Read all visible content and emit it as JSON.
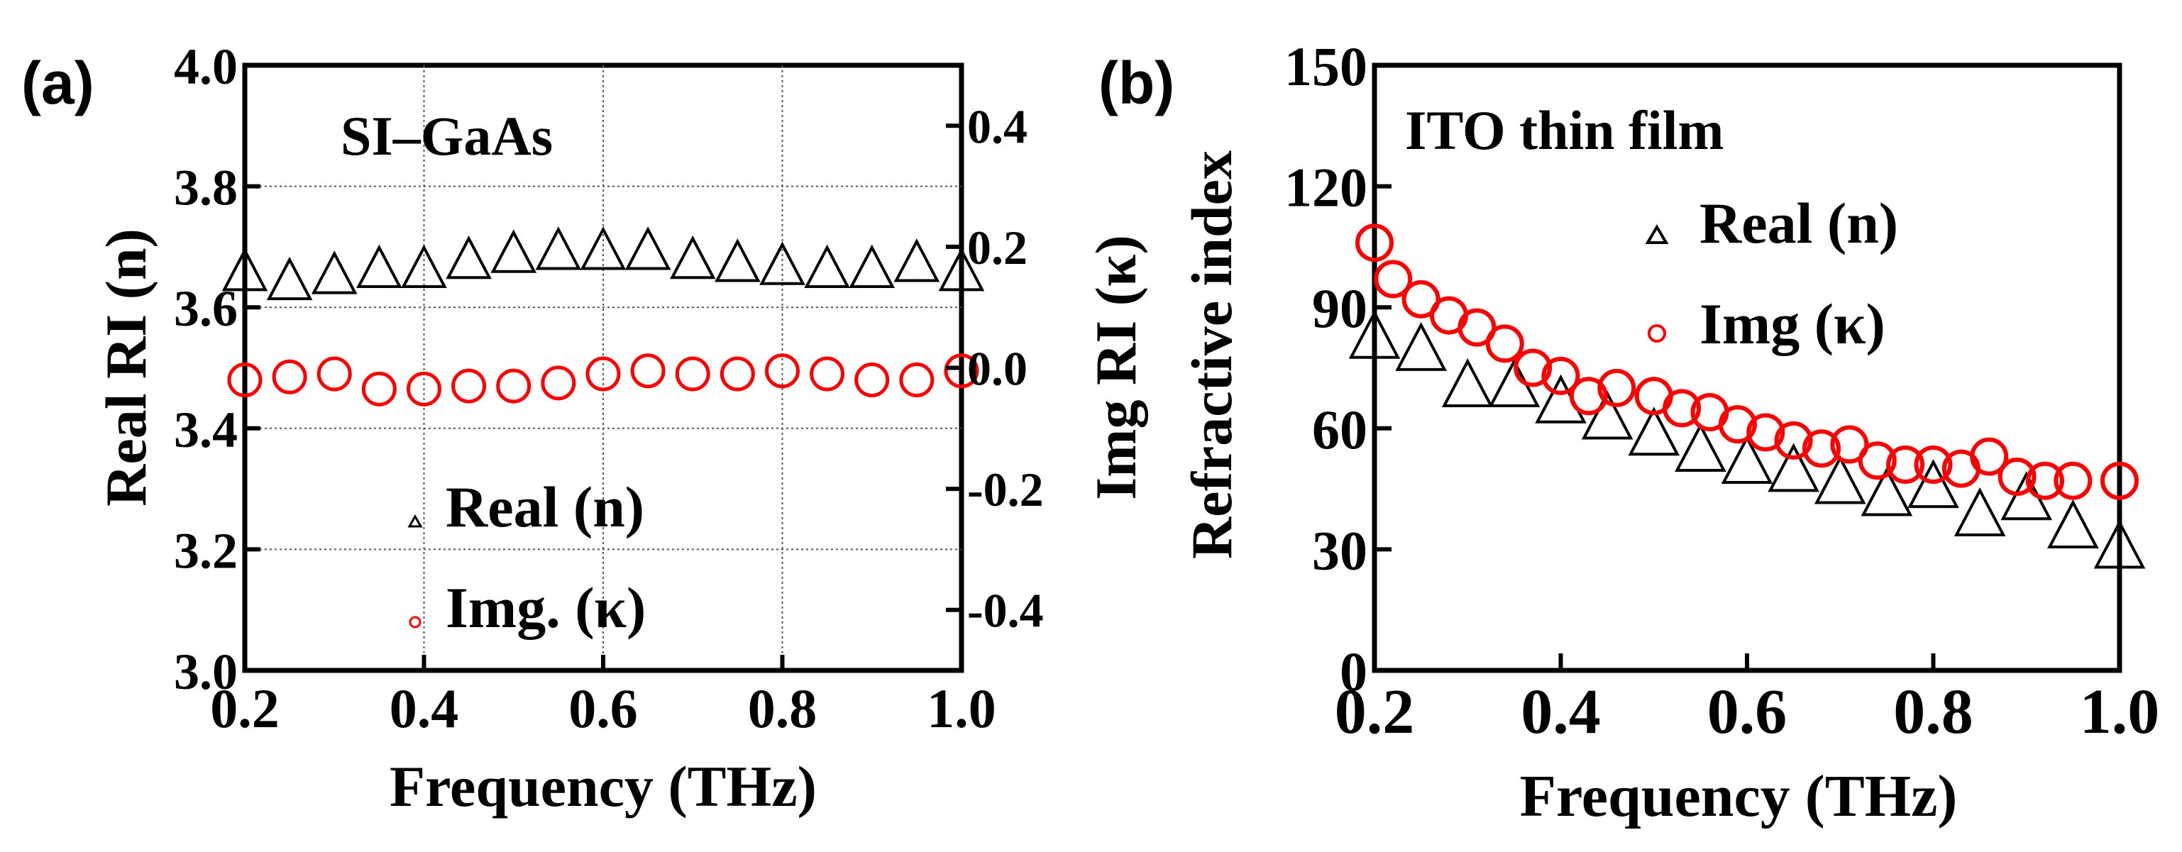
{
  "colors": {
    "real_series": "#000000",
    "img_series": "#ff0000",
    "axis": "#000000",
    "grid": "#555555",
    "background": "#ffffff"
  },
  "chart_data": [
    {
      "panel_label": "(a)",
      "type": "scatter",
      "title": "SI–GaAs",
      "xlabel": "Frequency (THz)",
      "ylabel": "Real  RI (n)",
      "y2label": "Img  RI (κ)",
      "xlim": [
        0.2,
        1.0
      ],
      "ylim": [
        3.0,
        4.0
      ],
      "y2lim": [
        -0.5,
        0.5
      ],
      "grid": true,
      "xticks": [
        "0.2",
        "0.4",
        "0.6",
        "0.8",
        "1.0"
      ],
      "yticks": [
        "3.0",
        "3.2",
        "3.4",
        "3.6",
        "3.8",
        "4.0"
      ],
      "y2ticks": [
        "-0.4",
        "-0.2",
        "0.0",
        "0.2",
        "0.4"
      ],
      "legend": [
        {
          "label": "Real (n)",
          "marker": "triangle",
          "color": "#000000"
        },
        {
          "label": "Img. (κ)",
          "marker": "circle",
          "color": "#ff0000"
        }
      ],
      "series": [
        {
          "name": "Real (n)",
          "axis": "left",
          "marker": "triangle",
          "color": "#000000",
          "x": [
            0.2,
            0.25,
            0.3,
            0.35,
            0.4,
            0.45,
            0.5,
            0.55,
            0.6,
            0.65,
            0.7,
            0.75,
            0.8,
            0.85,
            0.9,
            0.95,
            1.0
          ],
          "y": [
            3.655,
            3.64,
            3.65,
            3.66,
            3.66,
            3.675,
            3.685,
            3.69,
            3.69,
            3.69,
            3.675,
            3.67,
            3.665,
            3.66,
            3.66,
            3.67,
            3.655
          ]
        },
        {
          "name": "Img. (κ)",
          "axis": "right",
          "marker": "circle",
          "color": "#ff0000",
          "x": [
            0.2,
            0.25,
            0.3,
            0.35,
            0.4,
            0.45,
            0.5,
            0.55,
            0.6,
            0.65,
            0.7,
            0.75,
            0.8,
            0.85,
            0.9,
            0.95,
            1.0
          ],
          "y": [
            -0.02,
            -0.015,
            -0.01,
            -0.035,
            -0.035,
            -0.03,
            -0.03,
            -0.025,
            -0.01,
            -0.005,
            -0.01,
            -0.01,
            -0.005,
            -0.01,
            -0.02,
            -0.02,
            -0.005
          ]
        }
      ]
    },
    {
      "panel_label": "(b)",
      "type": "scatter",
      "title": "ITO thin film",
      "xlabel": "Frequency (THz)",
      "ylabel": "Refractive index",
      "xlim": [
        0.2,
        1.0
      ],
      "ylim": [
        0,
        150
      ],
      "grid": false,
      "xticks": [
        "0.2",
        "0.4",
        "0.6",
        "0.8",
        "1.0"
      ],
      "yticks": [
        "0",
        "30",
        "60",
        "90",
        "120",
        "150"
      ],
      "legend": [
        {
          "label": "Real (n)",
          "marker": "triangle",
          "color": "#000000"
        },
        {
          "label": "Img (κ)",
          "marker": "circle",
          "color": "#ff0000"
        }
      ],
      "series": [
        {
          "name": "Real (n)",
          "marker": "triangle",
          "color": "#000000",
          "x": [
            0.2,
            0.25,
            0.3,
            0.35,
            0.4,
            0.45,
            0.5,
            0.55,
            0.6,
            0.65,
            0.7,
            0.75,
            0.8,
            0.85,
            0.9,
            0.95,
            1.0
          ],
          "y": [
            82,
            79,
            70,
            70,
            66,
            62,
            58,
            54,
            51,
            49,
            46,
            43,
            45,
            38,
            42,
            35,
            30
          ]
        },
        {
          "name": "Img (κ)",
          "marker": "circle",
          "color": "#ff0000",
          "x": [
            0.2,
            0.22,
            0.25,
            0.28,
            0.31,
            0.34,
            0.37,
            0.4,
            0.43,
            0.46,
            0.5,
            0.53,
            0.56,
            0.59,
            0.62,
            0.65,
            0.68,
            0.71,
            0.74,
            0.77,
            0.8,
            0.83,
            0.86,
            0.89,
            0.92,
            0.95,
            1.0
          ],
          "y": [
            106,
            97,
            92,
            88,
            85,
            81,
            75,
            73,
            68,
            70,
            68,
            65,
            64,
            61,
            59,
            57,
            55,
            56,
            52,
            51,
            51,
            50,
            53,
            48,
            47,
            47,
            47
          ]
        }
      ]
    }
  ]
}
